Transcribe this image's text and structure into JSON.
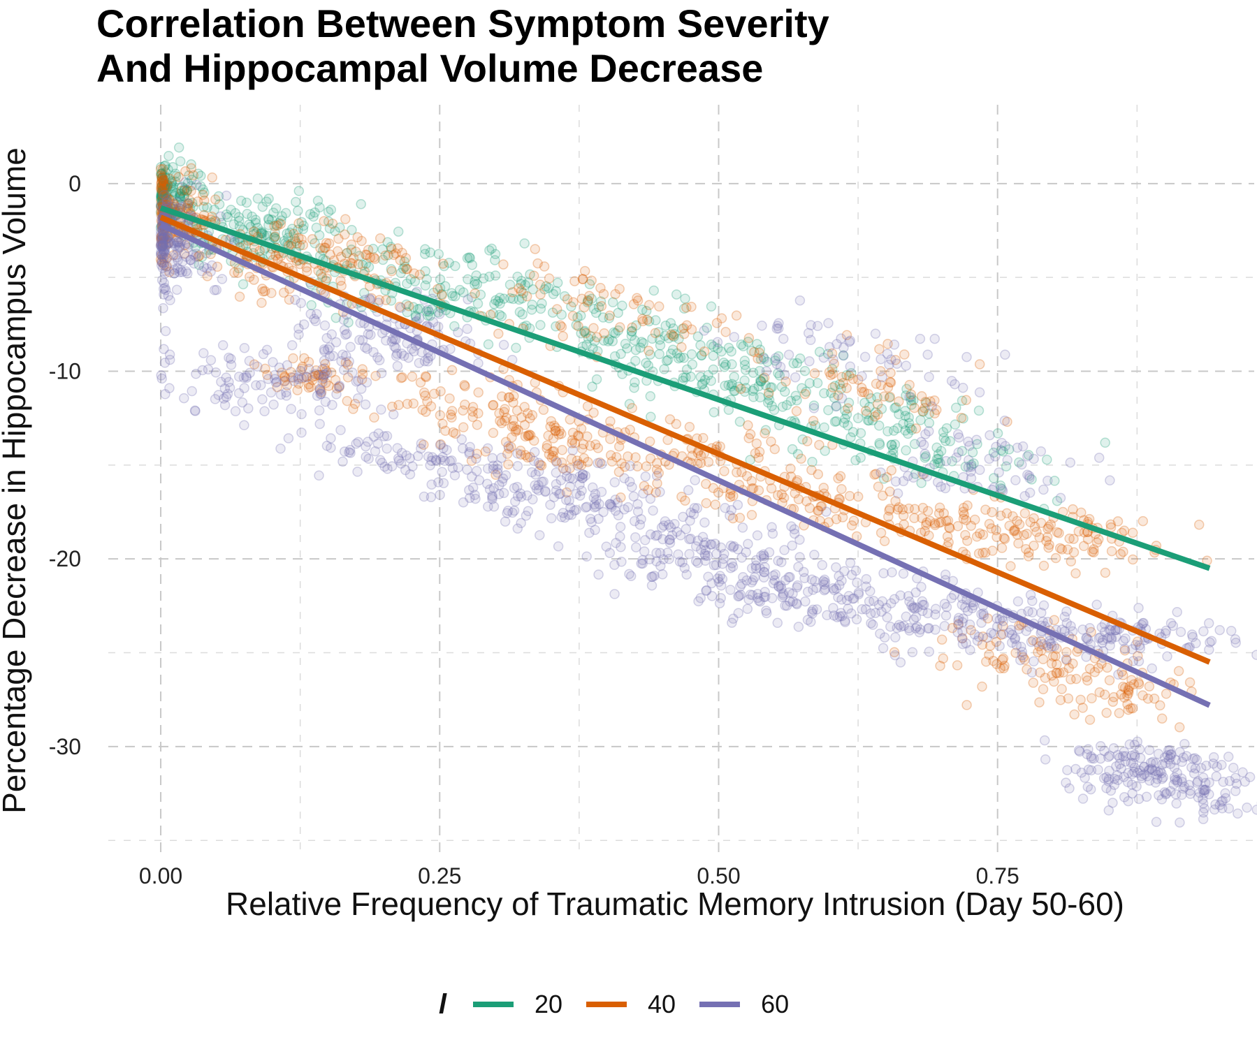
{
  "chart_data": {
    "type": "scatter",
    "title_lines": [
      "Correlation Between Symptom Severity",
      "And Hippocampal Volume Decrease"
    ],
    "xlabel": "Relative Frequency of Traumatic Memory Intrusion (Day 50-60)",
    "ylabel": "Percentage Decrease in Hippocampus Volume",
    "xlim": [
      -0.047,
      0.98
    ],
    "ylim": [
      -35.7,
      4.2
    ],
    "x_ticks": [
      0.0,
      0.25,
      0.5,
      0.75
    ],
    "x_tick_labels": [
      "0.00",
      "0.25",
      "0.50",
      "0.75"
    ],
    "y_ticks": [
      0,
      -10,
      -20,
      -30
    ],
    "y_tick_labels": [
      "0",
      "-10",
      "-20",
      "-30"
    ],
    "x_minor_ticks": [
      0.125,
      0.375,
      0.625,
      0.875
    ],
    "y_minor_ticks": [
      -5,
      -15,
      -25,
      -35
    ],
    "grid": true,
    "legend_position": "bottom",
    "legend_title": "l",
    "series": [
      {
        "name": "20",
        "color": "#1b9e77",
        "line": {
          "x": [
            0.0,
            0.94
          ],
          "y": [
            -1.3,
            -20.5
          ]
        },
        "point_clusters": [
          [
            0.0,
            0.0,
            0.0,
            -1.5,
            0.02,
            1.4,
            170
          ],
          [
            0.06,
            0.12,
            -2.0,
            -3.5,
            0.04,
            1.5,
            150
          ],
          [
            0.2,
            0.3,
            -4.5,
            -6.5,
            0.05,
            1.6,
            140
          ],
          [
            0.35,
            0.48,
            -6.5,
            -9.5,
            0.05,
            1.8,
            140
          ],
          [
            0.48,
            0.62,
            -9.5,
            -12.5,
            0.05,
            1.5,
            120
          ],
          [
            0.62,
            0.76,
            -12.0,
            -15.5,
            0.04,
            1.5,
            110
          ]
        ]
      },
      {
        "name": "40",
        "color": "#d95f02",
        "line": {
          "x": [
            0.0,
            0.94
          ],
          "y": [
            -1.8,
            -25.5
          ]
        },
        "point_clusters": [
          [
            0.0,
            0.0,
            -0.5,
            -3.0,
            0.025,
            1.5,
            160
          ],
          [
            0.1,
            0.18,
            -3.0,
            -5.5,
            0.05,
            1.5,
            150
          ],
          [
            0.12,
            0.15,
            -10.0,
            -10.5,
            0.02,
            0.8,
            50
          ],
          [
            0.25,
            0.4,
            -11.0,
            -14.5,
            0.05,
            1.6,
            170
          ],
          [
            0.3,
            0.45,
            -5.0,
            -8.0,
            0.05,
            1.8,
            80
          ],
          [
            0.45,
            0.6,
            -14.0,
            -17.0,
            0.05,
            1.8,
            150
          ],
          [
            0.58,
            0.7,
            -9.5,
            -12.0,
            0.04,
            1.5,
            60
          ],
          [
            0.65,
            0.85,
            -17.0,
            -19.5,
            0.05,
            1.2,
            170
          ],
          [
            0.75,
            0.88,
            -24.0,
            -27.5,
            0.04,
            1.2,
            130
          ]
        ]
      },
      {
        "name": "60",
        "color": "#7570b3",
        "line": {
          "x": [
            0.0,
            0.94
          ],
          "y": [
            -2.2,
            -27.8
          ]
        },
        "point_clusters": [
          [
            0.0,
            0.0,
            -1.5,
            -4.5,
            0.025,
            1.6,
            170
          ],
          [
            0.06,
            0.12,
            -9.5,
            -11.5,
            0.05,
            1.4,
            110
          ],
          [
            0.17,
            0.24,
            -6.5,
            -9.5,
            0.04,
            1.6,
            120
          ],
          [
            0.18,
            0.28,
            -14.0,
            -15.0,
            0.05,
            1.0,
            70
          ],
          [
            0.3,
            0.4,
            -15.5,
            -17.0,
            0.05,
            1.3,
            140
          ],
          [
            0.42,
            0.52,
            -18.0,
            -20.5,
            0.05,
            1.5,
            150
          ],
          [
            0.5,
            0.62,
            -20.5,
            -22.5,
            0.05,
            1.3,
            110
          ],
          [
            0.56,
            0.66,
            -7.5,
            -10.5,
            0.05,
            1.5,
            60
          ],
          [
            0.62,
            0.82,
            -22.0,
            -24.5,
            0.05,
            1.5,
            180
          ],
          [
            0.7,
            0.78,
            -14.0,
            -16.0,
            0.04,
            1.3,
            70
          ],
          [
            0.85,
            0.93,
            -30.5,
            -32.5,
            0.04,
            1.2,
            200
          ],
          [
            0.8,
            0.92,
            -23.5,
            -24.5,
            0.04,
            1.0,
            90
          ]
        ]
      }
    ]
  }
}
